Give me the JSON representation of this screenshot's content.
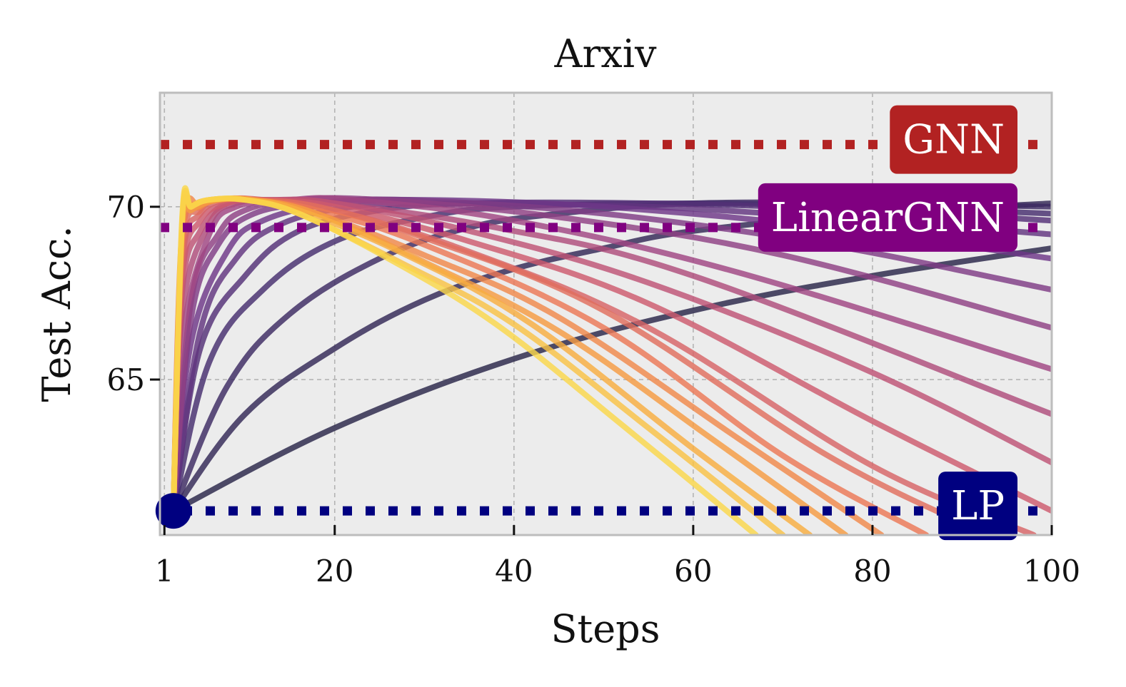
{
  "chart_data": {
    "type": "line",
    "title": "Arxiv",
    "xlabel": "Steps",
    "ylabel": "Test Acc.",
    "xlim": [
      0.5,
      100
    ],
    "ylim": [
      60.5,
      73.3
    ],
    "xticks": [
      1,
      20,
      40,
      60,
      80,
      100
    ],
    "xtick_labels": [
      "1",
      "20",
      "40",
      "60",
      "80",
      "100"
    ],
    "yticks": [
      65,
      70
    ],
    "ytick_labels": [
      "65",
      "70"
    ],
    "grid": true,
    "colormap": "inferno",
    "baselines": [
      {
        "name": "GNN",
        "value": 71.8,
        "color": "#b22222"
      },
      {
        "name": "LinearGNN",
        "value": 69.4,
        "color": "#800080"
      },
      {
        "name": "LP",
        "value": 61.2,
        "color": "#000080"
      }
    ],
    "start_point": {
      "x": 2,
      "y": 61.2,
      "color": "#000080"
    },
    "series": [
      {
        "x": [
          2,
          20,
          40,
          60,
          80,
          100
        ],
        "y": [
          61.2,
          63.6,
          65.6,
          67.0,
          68.0,
          68.8
        ]
      },
      {
        "x": [
          2,
          10,
          20,
          30,
          40,
          50,
          60,
          80,
          100
        ],
        "y": [
          61.2,
          64.0,
          65.9,
          67.3,
          68.2,
          68.8,
          69.3,
          69.8,
          70.1
        ]
      },
      {
        "x": [
          2,
          8,
          15,
          25,
          35,
          45,
          60,
          80,
          100
        ],
        "y": [
          61.2,
          64.8,
          66.9,
          68.5,
          69.4,
          69.8,
          70.1,
          70.1,
          70.0
        ]
      },
      {
        "x": [
          2,
          6,
          12,
          20,
          30,
          40,
          60,
          80,
          100
        ],
        "y": [
          61.2,
          65.5,
          67.6,
          69.0,
          69.7,
          70.0,
          70.1,
          70.0,
          69.8
        ]
      },
      {
        "x": [
          2,
          5,
          10,
          16,
          25,
          35,
          55,
          80,
          100
        ],
        "y": [
          61.2,
          65.9,
          68.0,
          69.3,
          69.9,
          70.1,
          70.1,
          69.9,
          69.6
        ]
      },
      {
        "x": [
          2,
          5,
          9,
          14,
          22,
          32,
          55,
          80,
          100
        ],
        "y": [
          61.2,
          66.4,
          68.5,
          69.5,
          70.0,
          70.1,
          70.0,
          69.6,
          69.2
        ]
      },
      {
        "x": [
          2,
          4,
          8,
          12,
          20,
          30,
          50,
          75,
          100
        ],
        "y": [
          61.2,
          66.1,
          68.7,
          69.6,
          70.1,
          70.2,
          70.0,
          69.4,
          68.5
        ]
      },
      {
        "x": [
          2,
          4,
          7,
          11,
          18,
          28,
          50,
          75,
          100
        ],
        "y": [
          61.2,
          66.8,
          68.9,
          69.8,
          70.1,
          70.2,
          69.8,
          68.9,
          67.6
        ]
      },
      {
        "x": [
          2,
          4,
          7,
          10,
          16,
          25,
          45,
          70,
          100
        ],
        "y": [
          61.2,
          67.3,
          69.2,
          69.9,
          70.2,
          70.2,
          69.7,
          68.6,
          66.5
        ]
      },
      {
        "x": [
          2,
          3,
          6,
          9,
          15,
          22,
          40,
          65,
          100
        ],
        "y": [
          61.2,
          66.2,
          69.2,
          70.0,
          70.2,
          70.2,
          69.6,
          68.1,
          65.3
        ]
      },
      {
        "x": [
          2,
          3,
          6,
          9,
          14,
          20,
          38,
          60,
          100
        ],
        "y": [
          61.2,
          67.0,
          69.5,
          70.1,
          70.2,
          70.1,
          69.4,
          68.0,
          64.0
        ]
      },
      {
        "x": [
          2,
          3,
          5,
          8,
          13,
          20,
          35,
          55,
          80,
          100
        ],
        "y": [
          61.2,
          67.6,
          69.3,
          70.1,
          70.2,
          70.1,
          69.3,
          67.8,
          65.2,
          62.6
        ]
      },
      {
        "x": [
          2,
          3,
          5,
          8,
          12,
          20,
          35,
          55,
          80,
          100
        ],
        "y": [
          61.2,
          68.0,
          69.6,
          70.1,
          70.2,
          70.0,
          69.0,
          67.2,
          63.8,
          61.2
        ]
      },
      {
        "x": [
          2,
          3,
          5,
          8,
          12,
          20,
          35,
          55,
          80,
          98
        ],
        "y": [
          61.2,
          68.4,
          69.8,
          70.2,
          70.2,
          69.9,
          68.7,
          66.5,
          62.5,
          60.5
        ]
      },
      {
        "x": [
          2,
          3,
          5,
          7,
          11,
          18,
          30,
          50,
          75,
          93
        ],
        "y": [
          61.2,
          68.8,
          69.9,
          70.2,
          70.2,
          70.0,
          69.1,
          67.0,
          62.8,
          60.5
        ]
      },
      {
        "x": [
          2,
          3,
          5,
          7,
          11,
          18,
          30,
          50,
          70,
          86
        ],
        "y": [
          61.2,
          69.1,
          70.0,
          70.2,
          70.2,
          69.9,
          68.9,
          66.5,
          62.8,
          60.5
        ]
      },
      {
        "x": [
          2,
          3,
          5,
          7,
          11,
          18,
          30,
          45,
          65,
          81
        ],
        "y": [
          61.2,
          69.4,
          70.0,
          70.2,
          70.2,
          69.8,
          68.6,
          66.8,
          63.3,
          60.5
        ]
      },
      {
        "x": [
          2,
          3,
          4,
          7,
          11,
          18,
          30,
          45,
          62,
          77
        ],
        "y": [
          61.2,
          69.5,
          69.9,
          70.2,
          70.2,
          69.8,
          68.4,
          66.4,
          63.3,
          60.5
        ]
      },
      {
        "x": [
          2,
          3,
          4,
          6,
          10,
          16,
          28,
          42,
          60,
          73
        ],
        "y": [
          61.2,
          69.6,
          70.0,
          70.2,
          70.2,
          69.9,
          68.6,
          66.6,
          63.0,
          60.5
        ]
      },
      {
        "x": [
          2,
          3,
          4,
          6,
          10,
          16,
          28,
          40,
          55,
          70
        ],
        "y": [
          61.2,
          69.7,
          70.0,
          70.2,
          70.2,
          69.8,
          68.3,
          66.6,
          63.6,
          60.5
        ]
      },
      {
        "x": [
          2,
          3,
          4,
          6,
          10,
          16,
          26,
          38,
          52,
          67
        ],
        "y": [
          61.2,
          69.8,
          70.0,
          70.2,
          70.2,
          69.8,
          68.5,
          66.6,
          63.7,
          60.5
        ]
      }
    ]
  }
}
